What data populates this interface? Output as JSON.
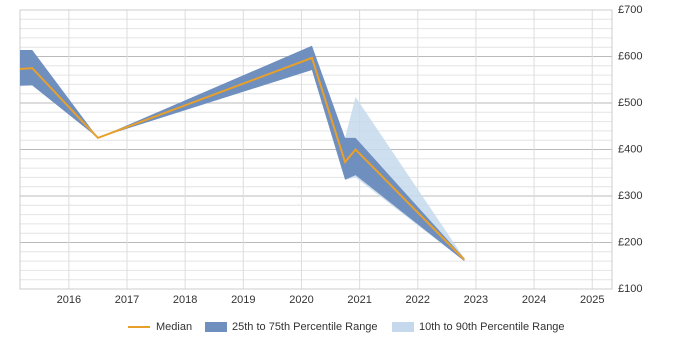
{
  "chart_data": {
    "type": "band-line",
    "x": [
      2015.16,
      2015.37,
      2016.5,
      2020.18,
      2020.75,
      2020.93,
      2022.8
    ],
    "xlim": [
      2015.16,
      2025.34
    ],
    "xticks": [
      2016,
      2017,
      2018,
      2019,
      2020,
      2021,
      2022,
      2023,
      2024,
      2025
    ],
    "ylim": [
      100,
      700
    ],
    "yticks": [
      {
        "value": 100,
        "label": "£100"
      },
      {
        "value": 200,
        "label": "£200"
      },
      {
        "value": 300,
        "label": "£300"
      },
      {
        "value": 400,
        "label": "£400"
      },
      {
        "value": 500,
        "label": "£500"
      },
      {
        "value": 600,
        "label": "£600"
      },
      {
        "value": 700,
        "label": "£700"
      }
    ],
    "grid": true,
    "series": [
      {
        "name": "Median",
        "color": "#e8a02a",
        "values": [
          573,
          575,
          425,
          597,
          373,
          400,
          163
        ]
      },
      {
        "name": "25th to 75th Percentile Range",
        "color": "#6f8fbf",
        "lower": [
          537,
          538,
          425,
          571,
          335,
          345,
          160
        ],
        "upper": [
          614,
          614,
          425,
          623,
          425,
          425,
          166
        ]
      },
      {
        "name": "10th to 90th Percentile Range",
        "color": "#c6d9ec",
        "lower": [
          537,
          538,
          425,
          571,
          335,
          340,
          160
        ],
        "upper": [
          614,
          614,
          425,
          623,
          425,
          513,
          166
        ]
      }
    ]
  }
}
